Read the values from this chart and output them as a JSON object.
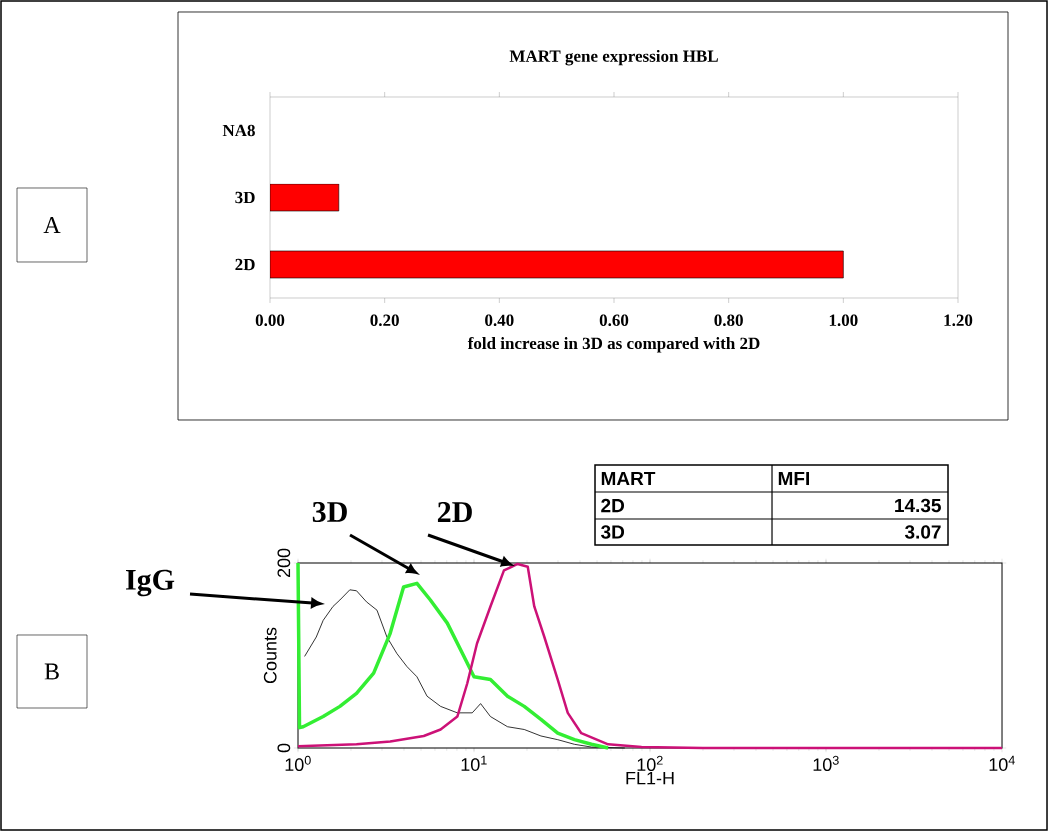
{
  "chart_data": [
    {
      "type": "bar",
      "orientation": "horizontal",
      "title": "MART gene expression HBL",
      "xlabel": "fold increase in 3D as compared with 2D",
      "categories": [
        "NA8",
        "3D",
        "2D"
      ],
      "values": [
        null,
        0.12,
        1.0
      ],
      "color": "#ff0000",
      "xlim": [
        0,
        1.2
      ],
      "xticks": [
        {
          "value": 0,
          "label": "0.00"
        },
        {
          "value": 0.2,
          "label": "0.20"
        },
        {
          "value": 0.4,
          "label": "0.40"
        },
        {
          "value": 0.6,
          "label": "0.60"
        },
        {
          "value": 0.8,
          "label": "0.80"
        },
        {
          "value": 1.0,
          "label": "1.00"
        },
        {
          "value": 1.2,
          "label": "1.20"
        }
      ],
      "annotations": [
        "A"
      ]
    },
    {
      "type": "line",
      "xlabel": "FL1-H",
      "ylabel": "Counts",
      "log": "x",
      "xlim": [
        1,
        10000
      ],
      "ylim": [
        0,
        200
      ],
      "xticks": [
        {
          "value": 1,
          "label": "10$^{0}$"
        },
        {
          "value": 10,
          "label": "10$^{1}$"
        },
        {
          "value": 100,
          "label": "10$^{2}$"
        },
        {
          "value": 1000,
          "label": "10$^{3}$"
        },
        {
          "value": 10000,
          "label": "10$^{4}$"
        }
      ],
      "yticks": [
        0,
        200
      ],
      "series": [
        {
          "name": "IgG",
          "color": "#000000",
          "x": [
            1.09,
            1.27,
            1.39,
            1.58,
            1.73,
            1.97,
            2.15,
            2.45,
            2.81,
            3.2,
            3.65,
            4.16,
            4.74,
            5.41,
            6.46,
            8.04,
            9.77,
            10.9,
            12.4,
            15.5,
            19.3,
            24,
            29.9,
            37.2,
            46.5,
            71.9
          ],
          "values": [
            99,
            120,
            138,
            153,
            160,
            171,
            170,
            158,
            149,
            120,
            102,
            88,
            77,
            56,
            45,
            38,
            38,
            48,
            34,
            23,
            20,
            13,
            9,
            4,
            1,
            0
          ]
        },
        {
          "name": "3D",
          "color": "#33ee33",
          "x": [
            1,
            1.02,
            1.07,
            1.39,
            1.73,
            2.15,
            2.69,
            3.34,
            3.98,
            4.74,
            5.65,
            7.05,
            8.77,
            10,
            12.4,
            15.5,
            19.3,
            24,
            29.9,
            37.2,
            46.5,
            57.8
          ],
          "values": [
            200,
            22,
            23,
            34,
            45,
            59,
            81,
            124,
            174,
            178,
            160,
            135,
            99,
            77,
            74,
            56,
            45,
            31,
            16,
            9,
            4,
            0
          ]
        },
        {
          "name": "2D",
          "color": "#cc1177",
          "x": [
            1,
            2.15,
            3.34,
            5.18,
            6.46,
            8.04,
            9.16,
            10.4,
            12.4,
            14.8,
            17.7,
            20.2,
            22,
            25.1,
            29.9,
            34.1,
            40.7,
            57.8,
            89.5,
            200,
            1000,
            10000
          ],
          "values": [
            2,
            4,
            7,
            13,
            20,
            34,
            70,
            113,
            153,
            192,
            199,
            196,
            153,
            120,
            74,
            38,
            16,
            4,
            1,
            0,
            0,
            0
          ]
        }
      ],
      "annotations": [
        "B"
      ]
    },
    {
      "type": "other",
      "annotations": [
        "MART",
        "MFI",
        "2D",
        "14.35",
        "3D",
        "3.07"
      ]
    }
  ]
}
